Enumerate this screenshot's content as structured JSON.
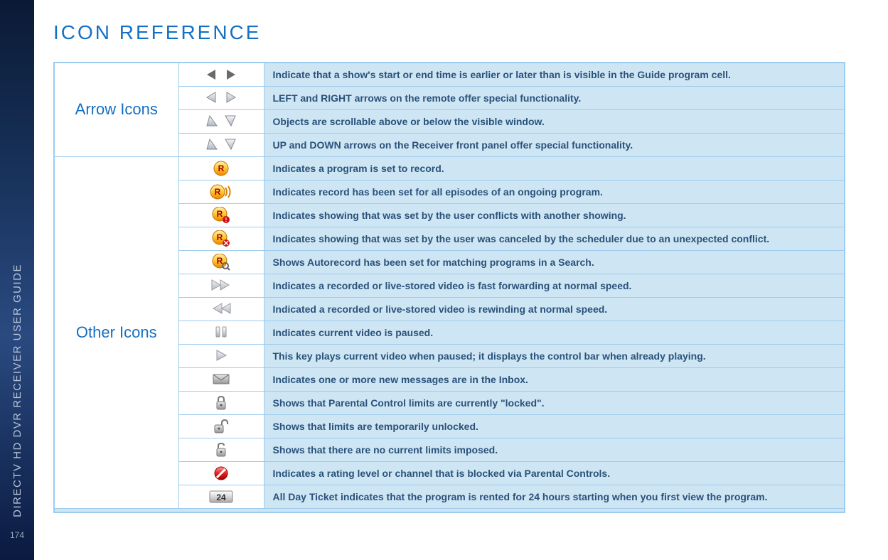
{
  "sidebar": {
    "vertical_title": "DIRECTV HD DVR RECEIVER USER GUIDE",
    "page_number": "174"
  },
  "page_title": "ICON REFERENCE",
  "colors": {
    "title": "#1570c4",
    "category_text": "#1570c4",
    "desc_bg": "#cee5f4",
    "desc_text": "#2a527a",
    "border": "#9eccee",
    "sidebar_text": "#b8c5d8"
  },
  "sections": [
    {
      "category": "Arrow Icons",
      "rows": [
        {
          "icon_name": "arrows-lr-filled",
          "desc": "Indicate that a show's start or end time is earlier or later than is visible in the Guide program cell."
        },
        {
          "icon_name": "arrows-lr-outline",
          "desc": "LEFT and RIGHT arrows on the remote offer special functionality."
        },
        {
          "icon_name": "arrows-ud-1",
          "desc": "Objects are scrollable above or below the visible window."
        },
        {
          "icon_name": "arrows-ud-2",
          "desc": "UP and DOWN arrows on the Receiver front panel offer special functionality."
        }
      ]
    },
    {
      "category": "Other Icons",
      "rows": [
        {
          "icon_name": "record-r-icon",
          "desc": "Indicates a program is set to record."
        },
        {
          "icon_name": "record-series-icon",
          "desc": "Indicates record has been set for all episodes of an ongoing program."
        },
        {
          "icon_name": "record-conflict-icon",
          "desc": "Indicates showing that was set by the user conflicts with another showing."
        },
        {
          "icon_name": "record-canceled-icon",
          "desc": "Indicates showing that was set by the user was canceled by the scheduler due to an unexpected conflict."
        },
        {
          "icon_name": "record-auto-icon",
          "desc": "Shows Autorecord has been set for matching programs in a Search."
        },
        {
          "icon_name": "fast-forward-icon",
          "desc": "Indicates a recorded or live-stored video is fast forwarding at normal speed."
        },
        {
          "icon_name": "rewind-icon",
          "desc": "Indicated a recorded or live-stored video is rewinding at normal speed."
        },
        {
          "icon_name": "pause-icon",
          "desc": "Indicates current video is paused."
        },
        {
          "icon_name": "play-icon",
          "desc": "This key plays current video when paused; it displays the control bar when already playing."
        },
        {
          "icon_name": "inbox-mail-icon",
          "desc": "Indicates one or more new messages are in the Inbox."
        },
        {
          "icon_name": "lock-closed-icon",
          "desc": "Shows that Parental Control limits are currently \"locked\"."
        },
        {
          "icon_name": "lock-temp-icon",
          "desc": "Shows that limits are temporarily unlocked."
        },
        {
          "icon_name": "lock-open-icon",
          "desc": "Shows that there are no current limits imposed."
        },
        {
          "icon_name": "blocked-icon",
          "desc": "Indicates a rating level or channel that is blocked via Parental Controls."
        },
        {
          "icon_name": "ticket-24-icon",
          "desc": "All Day Ticket indicates that the program is rented for 24 hours starting when you first view the program."
        }
      ]
    }
  ]
}
